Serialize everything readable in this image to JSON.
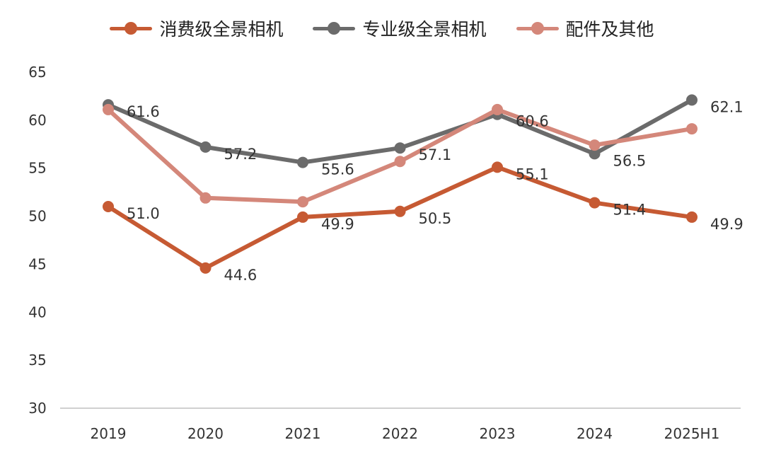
{
  "chart_data": {
    "type": "line",
    "title": "",
    "xlabel": "",
    "ylabel": "",
    "categories": [
      "2019",
      "2020",
      "2021",
      "2022",
      "2023",
      "2024",
      "2025H1"
    ],
    "ylim": [
      30,
      65
    ],
    "yticks": [
      "30",
      "35",
      "40",
      "45",
      "50",
      "55",
      "60",
      "65"
    ],
    "grid": false,
    "legend_position": "top-center",
    "series": [
      {
        "name": "消费级全景相机",
        "color": "#c65a33",
        "values": [
          51.0,
          44.6,
          49.9,
          50.5,
          55.1,
          51.4,
          49.9
        ],
        "labels": [
          "51.0",
          "44.6",
          "49.9",
          "50.5",
          "55.1",
          "51.4",
          "49.9"
        ]
      },
      {
        "name": "专业级全景相机",
        "color": "#6b6b6b",
        "values": [
          61.6,
          57.2,
          55.6,
          57.1,
          60.6,
          56.5,
          62.1
        ],
        "labels": [
          "61.6",
          "57.2",
          "55.6",
          "57.1",
          "60.6",
          "56.5",
          "62.1"
        ]
      },
      {
        "name": "配件及其他",
        "color": "#d4877a",
        "values": [
          61.1,
          51.9,
          51.5,
          55.7,
          61.1,
          57.4,
          59.1
        ],
        "labels": []
      }
    ]
  }
}
